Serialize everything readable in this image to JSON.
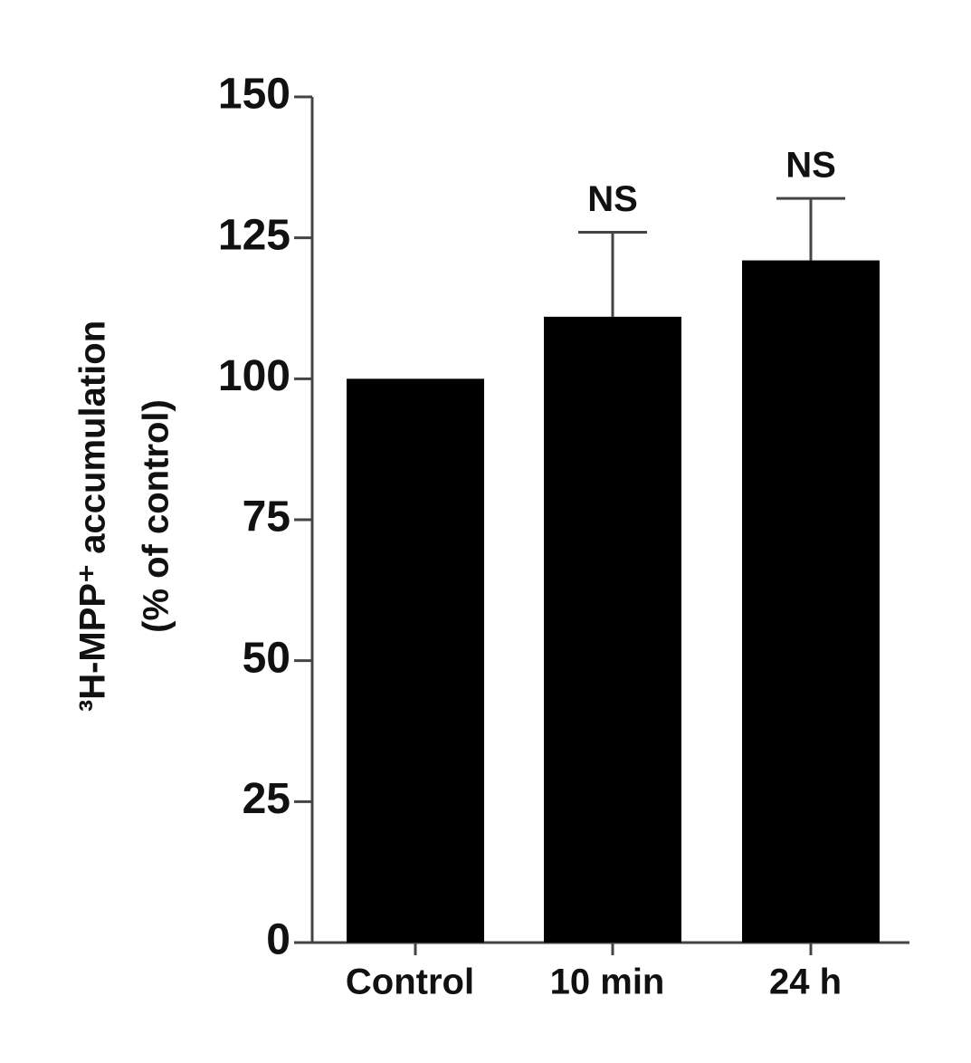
{
  "chart_data": {
    "type": "bar",
    "ylabel": [
      "³H-MPP⁺ accumulation",
      "(% of control)"
    ],
    "categories": [
      "Control",
      "10 min",
      "24 h"
    ],
    "values": [
      100,
      111,
      121
    ],
    "errors": [
      null,
      15,
      11
    ],
    "annotations": [
      null,
      "NS",
      "NS"
    ],
    "color": "#000000",
    "ylim": [
      0,
      150
    ],
    "yticks": [
      0,
      25,
      50,
      75,
      100,
      125,
      150
    ]
  }
}
